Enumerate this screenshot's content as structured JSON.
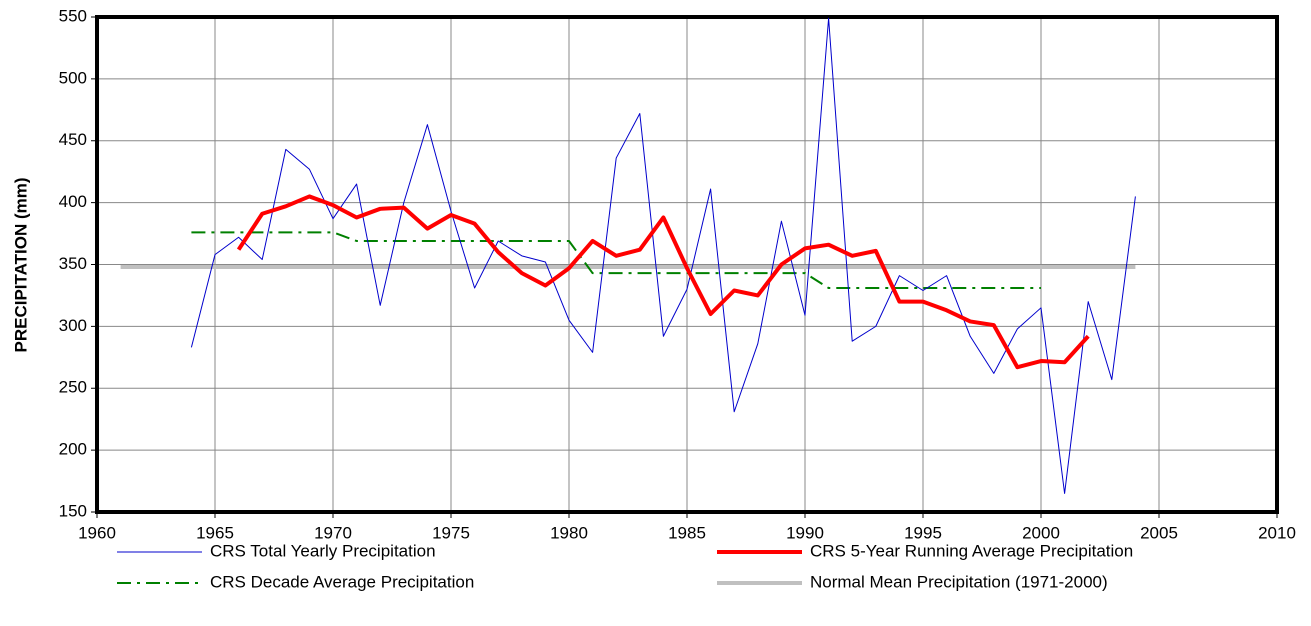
{
  "chart_data": {
    "type": "line",
    "y_label": "PRECIPITATION (mm)",
    "xlim": [
      1960,
      2010
    ],
    "xticks": [
      1960,
      1965,
      1970,
      1975,
      1980,
      1985,
      1990,
      1995,
      2000,
      2005,
      2010
    ],
    "ylim": [
      150,
      550
    ],
    "yticks": [
      150,
      200,
      250,
      300,
      350,
      400,
      450,
      500,
      550
    ],
    "grid": true,
    "series": [
      {
        "name": "CRS Total Yearly Precipitation",
        "color": "#0000cc",
        "line_width": 1,
        "style": "solid",
        "x": [
          1964,
          1965,
          1966,
          1967,
          1968,
          1969,
          1970,
          1971,
          1972,
          1973,
          1974,
          1975,
          1976,
          1977,
          1978,
          1979,
          1980,
          1981,
          1982,
          1983,
          1984,
          1985,
          1986,
          1987,
          1988,
          1989,
          1990,
          1991,
          1992,
          1993,
          1994,
          1995,
          1996,
          1997,
          1998,
          1999,
          2000,
          2001,
          2002,
          2003,
          2004
        ],
        "values": [
          283,
          358,
          372,
          354,
          443,
          427,
          387,
          415,
          317,
          400,
          463,
          393,
          331,
          369,
          357,
          352,
          305,
          279,
          436,
          472,
          292,
          330,
          411,
          231,
          286,
          385,
          309,
          549,
          288,
          300,
          341,
          329,
          341,
          292,
          262,
          298,
          315,
          165,
          320,
          257,
          405
        ]
      },
      {
        "name": "CRS 5-Year Running Average Precipitation",
        "color": "#ff0000",
        "line_width": 4,
        "style": "solid",
        "x": [
          1966,
          1967,
          1968,
          1969,
          1970,
          1971,
          1972,
          1973,
          1974,
          1975,
          1976,
          1977,
          1978,
          1979,
          1980,
          1981,
          1982,
          1983,
          1984,
          1985,
          1986,
          1987,
          1988,
          1989,
          1990,
          1991,
          1992,
          1993,
          1994,
          1995,
          1996,
          1997,
          1998,
          1999,
          2000,
          2001,
          2002
        ],
        "values": [
          362,
          391,
          397,
          405,
          398,
          388,
          395,
          396,
          379,
          390,
          383,
          360,
          343,
          333,
          347,
          369,
          357,
          362,
          388,
          347,
          310,
          329,
          325,
          350,
          363,
          366,
          357,
          361,
          320,
          320,
          313,
          304,
          301,
          267,
          272,
          271,
          292
        ]
      },
      {
        "name": "CRS Decade Average Precipitation",
        "color": "#008000",
        "line_width": 2,
        "style": "dash-dot",
        "x": [
          1964,
          1970,
          1971,
          1980,
          1981,
          1990,
          1991,
          2000
        ],
        "values": [
          376,
          376,
          369,
          369,
          343,
          343,
          331,
          331
        ]
      },
      {
        "name": "Normal Mean Precipitation (1971-2000)",
        "color": "#c0c0c0",
        "line_width": 4,
        "style": "solid",
        "x": [
          1961,
          2004
        ],
        "values": [
          348,
          348
        ]
      }
    ]
  }
}
